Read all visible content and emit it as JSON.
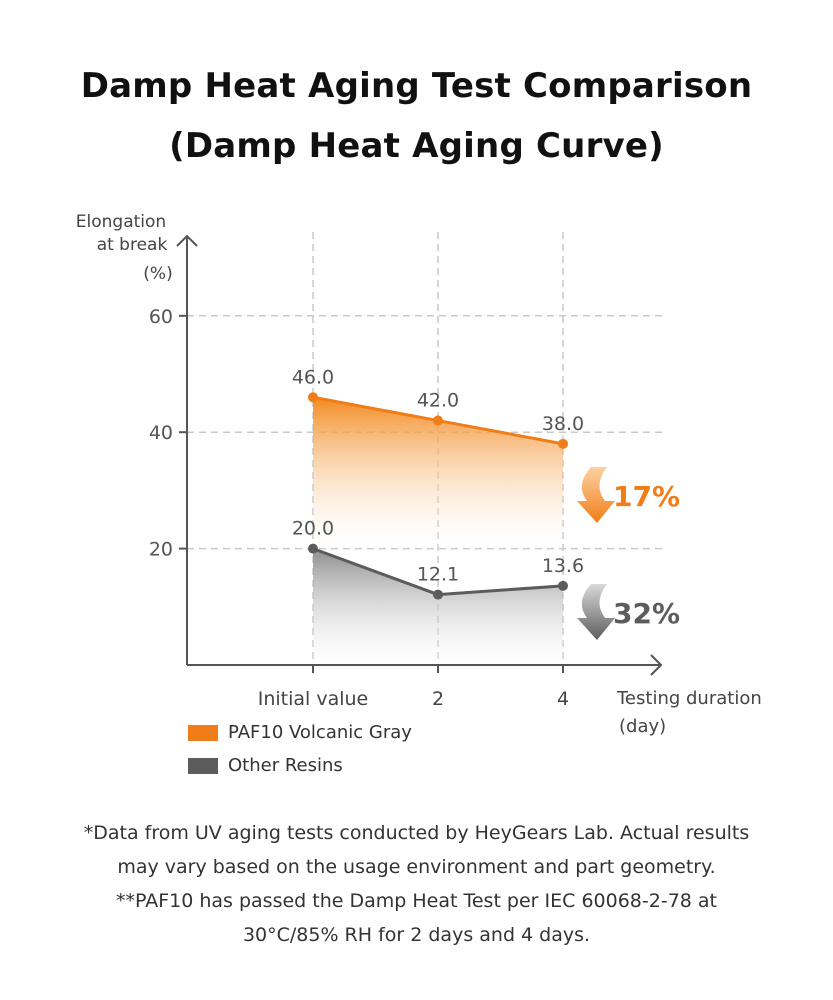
{
  "title_line1": "Damp Heat Aging Test Comparison",
  "title_line2": "(Damp Heat Aging Curve)",
  "chart_data": {
    "type": "line",
    "categories": [
      "Initial value",
      "2",
      "4"
    ],
    "series": [
      {
        "name": "PAF10 Volcanic Gray",
        "values": [
          46.0,
          42.0,
          38.0
        ],
        "labels": [
          "46.0",
          "42.0",
          "38.0"
        ],
        "color": "#f07d17",
        "reduction": "17%"
      },
      {
        "name": "Other Resins",
        "values": [
          20.0,
          12.1,
          13.6
        ],
        "labels": [
          "20.0",
          "12.1",
          "13.6"
        ],
        "color": "#5c5c5c",
        "reduction": "32%"
      }
    ],
    "y_ticks": [
      "20",
      "40",
      "60"
    ],
    "ylabel_lines": [
      "Elongation",
      "at break",
      "(%)"
    ],
    "xlabel_lines": [
      "Testing duration",
      "(day)"
    ],
    "grid": true,
    "legend_position": "bottom-left"
  },
  "footnotes": [
    "*Data from UV aging tests conducted by HeyGears Lab. Actual results",
    "may vary based on the usage environment and part geometry.",
    "**PAF10 has passed the Damp Heat Test per IEC 60068-2-78 at",
    "30°C/85% RH for 2 days and 4 days."
  ]
}
